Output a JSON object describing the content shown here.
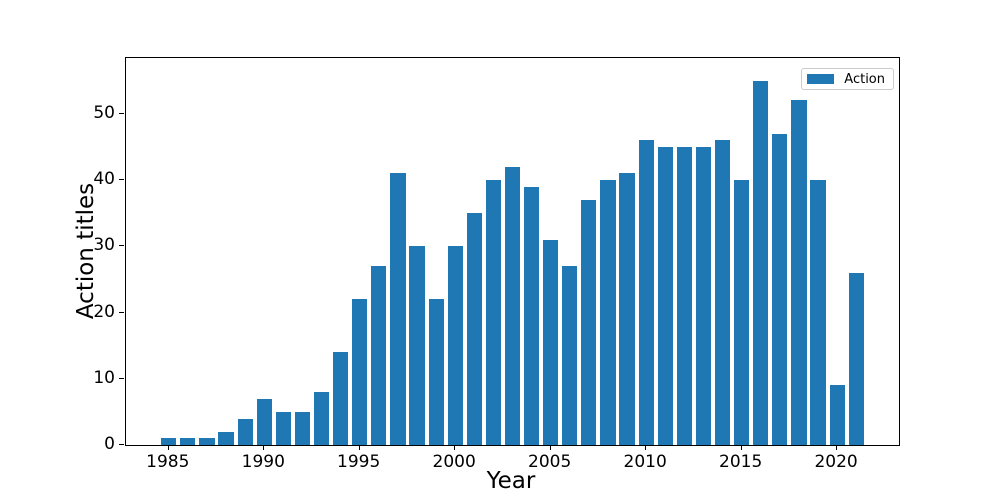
{
  "figure": {
    "background": "#ffffff",
    "spine_color": "#000000",
    "accent_color": "#1f77b4",
    "legend": {
      "label": "Action",
      "swatch_color": "#1f77b4",
      "position": "upper-right"
    }
  },
  "chart_data": {
    "type": "bar",
    "title": "",
    "xlabel": "Year",
    "ylabel": "Action titles",
    "series_name": "Action",
    "x": [
      1985,
      1986,
      1987,
      1988,
      1989,
      1990,
      1991,
      1992,
      1993,
      1994,
      1995,
      1996,
      1997,
      1998,
      1999,
      2000,
      2001,
      2002,
      2003,
      2004,
      2005,
      2006,
      2007,
      2008,
      2009,
      2010,
      2011,
      2012,
      2013,
      2014,
      2015,
      2016,
      2017,
      2018,
      2019,
      2020,
      2021
    ],
    "values": [
      1,
      1,
      1,
      2,
      4,
      7,
      5,
      5,
      8,
      14,
      22,
      27,
      41,
      30,
      22,
      30,
      35,
      40,
      42,
      39,
      31,
      27,
      37,
      40,
      41,
      46,
      45,
      45,
      45,
      46,
      40,
      55,
      47,
      52,
      40,
      9,
      26
    ],
    "bar_color": "#1f77b4",
    "bar_width": 0.8,
    "xlim": [
      1982.76,
      2023.24
    ],
    "ylim": [
      0,
      58.4
    ],
    "xticks": [
      1985,
      1990,
      1995,
      2000,
      2005,
      2010,
      2015,
      2020
    ],
    "yticks": [
      0,
      10,
      20,
      30,
      40,
      50
    ],
    "grid": false,
    "legend": {
      "entries": [
        "Action"
      ],
      "position": "upper right"
    }
  }
}
